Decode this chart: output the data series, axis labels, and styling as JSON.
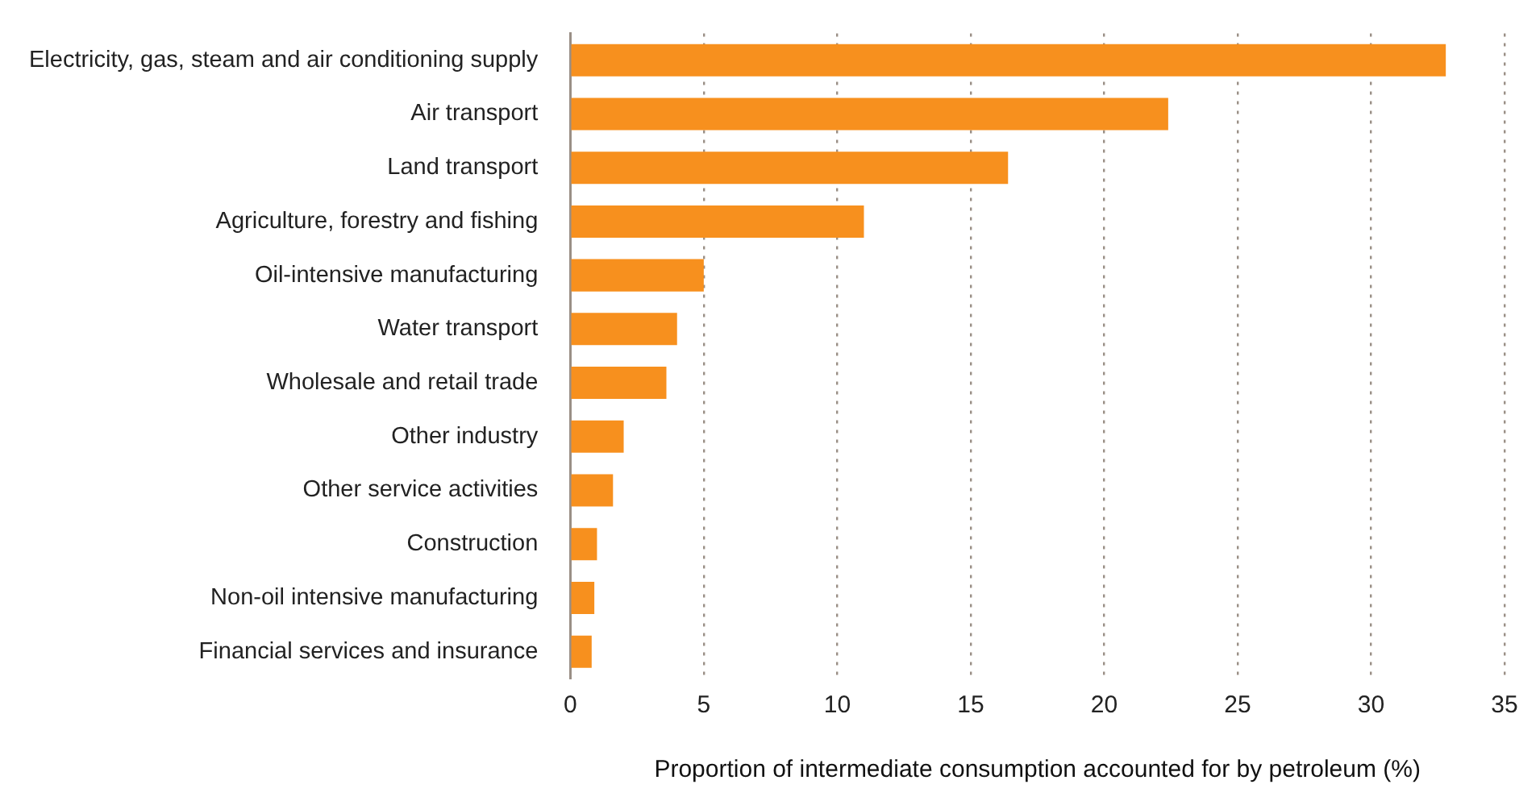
{
  "chart_data": {
    "type": "bar",
    "orientation": "horizontal",
    "xlabel": "Proportion of intermediate consumption accounted for by petroleum (%)",
    "categories": [
      "Electricity, gas, steam and air conditioning supply",
      "Air transport",
      "Land transport",
      "Agriculture, forestry and fishing",
      "Oil-intensive manufacturing",
      "Water transport",
      "Wholesale and retail trade",
      "Other industry",
      "Other service activities",
      "Construction",
      "Non-oil intensive manufacturing",
      "Financial services and insurance"
    ],
    "values": [
      32.8,
      22.4,
      16.4,
      11.0,
      5.0,
      4.0,
      3.6,
      2.0,
      1.6,
      1.0,
      0.9,
      0.8
    ],
    "color": "#f7901e",
    "xlim": [
      0,
      35
    ],
    "xticks": [
      0,
      5,
      10,
      15,
      20,
      25,
      30,
      35
    ],
    "grid": "x",
    "legend": false
  }
}
